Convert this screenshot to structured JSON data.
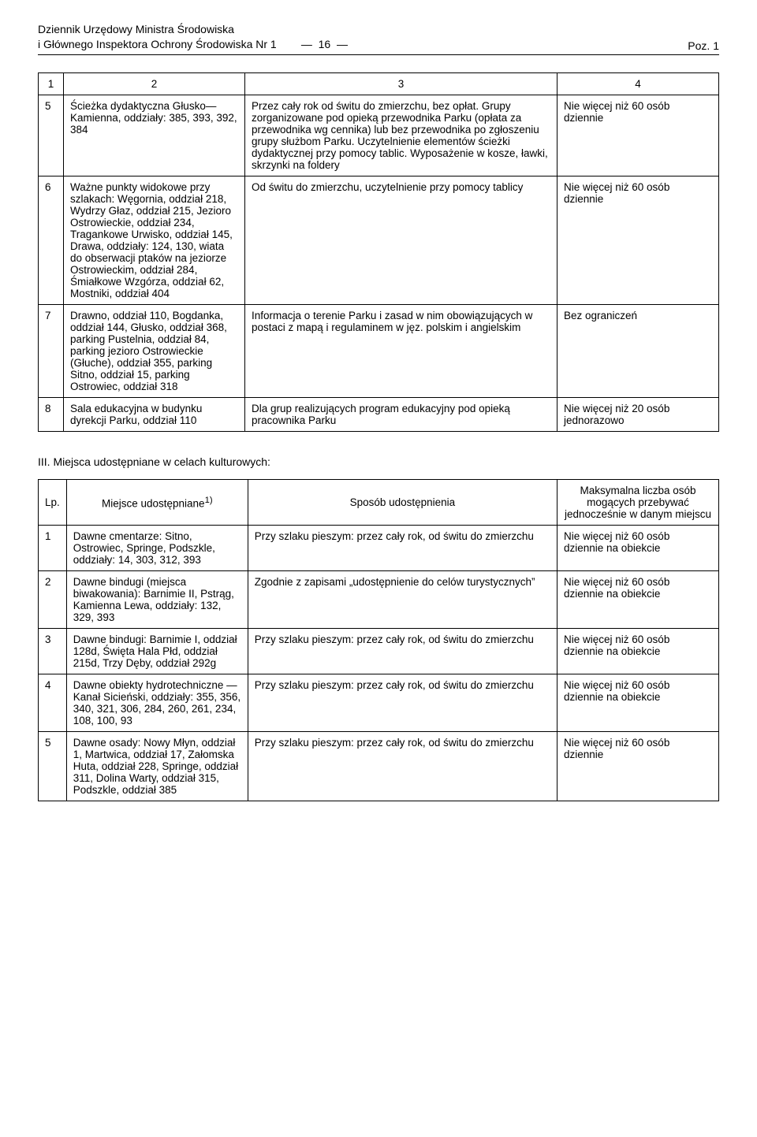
{
  "header": {
    "line1": "Dziennik Urzędowy Ministra Środowiska",
    "line2": "i Głównego Inspektora Ochrony Środowiska Nr 1",
    "center": "— 16 —",
    "right": "Poz. 1"
  },
  "table1": {
    "headers": [
      "1",
      "2",
      "3",
      "4"
    ],
    "rows": [
      {
        "n": "5",
        "a": "Ścieżka dydaktyczna Głusko—Kamienna, oddziały: 385, 393, 392, 384",
        "b": "Przez cały rok od świtu do zmierzchu, bez opłat. Grupy zorganizowane pod opieką przewodnika Parku (opłata za przewodnika wg cennika) lub bez przewodnika po zgłoszeniu grupy służbom Parku. Uczytelnienie elementów ścieżki dydaktycznej przy pomocy tablic. Wyposażenie w kosze, ławki, skrzynki na foldery",
        "c": "Nie więcej niż 60 osób dziennie"
      },
      {
        "n": "6",
        "a": "Ważne punkty widokowe przy szlakach: Węgornia, oddział 218, Wydrzy Głaz, oddział 215, Jezioro Ostrowieckie, oddział 234, Tragankowe Urwisko, oddział 145, Drawa, oddziały: 124, 130, wiata do obserwacji ptaków na jeziorze Ostrowieckim, oddział 284, Śmiałkowe Wzgórza, oddział 62, Mostniki, oddział 404",
        "b": "Od świtu do zmierzchu, uczytelnienie przy pomocy tablicy",
        "c": "Nie więcej niż 60 osób dziennie"
      },
      {
        "n": "7",
        "a": "Drawno, oddział 110, Bogdanka, oddział 144, Głusko, oddział 368, parking Pustelnia, oddział 84, parking jezioro Ostrowieckie (Głuche), oddział 355, parking Sitno, oddział 15, parking Ostrowiec, oddział 318",
        "b": "Informacja o terenie Parku i zasad w nim obowiązujących w postaci z mapą i regulaminem w jęz. polskim i angielskim",
        "c": "Bez ograniczeń"
      },
      {
        "n": "8",
        "a": "Sala edukacyjna w budynku dyrekcji Parku, oddział 110",
        "b": "Dla grup realizujących program edukacyjny pod opieką pracownika Parku",
        "c": "Nie więcej niż 20 osób jednorazowo"
      }
    ]
  },
  "section3": {
    "title": "III. Miejsca udostępniane w celach kulturowych:"
  },
  "table2": {
    "headers": {
      "lp": "Lp.",
      "a": "Miejsce udostępniane",
      "a_sup": "1)",
      "b": "Sposób udostępnienia",
      "c": "Maksymalna liczba osób mogących przebywać jednocześnie w danym miejscu"
    },
    "rows": [
      {
        "n": "1",
        "a": "Dawne cmentarze: Sitno, Ostrowiec, Springe, Podszkle, oddziały: 14, 303, 312, 393",
        "b": "Przy szlaku pieszym: przez cały rok, od świtu do zmierzchu",
        "c": "Nie więcej niż 60 osób dziennie na obiekcie"
      },
      {
        "n": "2",
        "a": "Dawne bindugi (miejsca biwakowania): Barnimie II, Pstrąg, Kamienna Lewa, oddziały: 132, 329, 393",
        "b": "Zgodnie z zapisami „udostępnienie do celów turystycznych”",
        "c": "Nie więcej niż 60 osób dziennie na obiekcie"
      },
      {
        "n": "3",
        "a": "Dawne bindugi: Barnimie I, oddział 128d, Święta Hala Płd, oddział 215d, Trzy Dęby, oddział 292g",
        "b": "Przy szlaku pieszym: przez cały rok, od świtu do zmierzchu",
        "c": "Nie więcej niż 60 osób dziennie na obiekcie"
      },
      {
        "n": "4",
        "a": "Dawne obiekty hydrotechniczne — Kanał Sicieński, oddziały: 355, 356, 340, 321, 306, 284, 260, 261, 234, 108, 100, 93",
        "b": "Przy szlaku pieszym: przez cały rok, od świtu do zmierzchu",
        "c": "Nie więcej niż 60 osób dziennie na obiekcie"
      },
      {
        "n": "5",
        "a": "Dawne osady: Nowy Młyn, oddział 1, Martwica, oddział 17, Załomska Huta, oddział 228, Springe, oddział 311, Dolina Warty, oddział 315, Podszkle, oddział 385",
        "b": "Przy szlaku pieszym: przez cały rok, od świtu do zmierzchu",
        "c": "Nie więcej niż 60 osób dziennie"
      }
    ]
  }
}
